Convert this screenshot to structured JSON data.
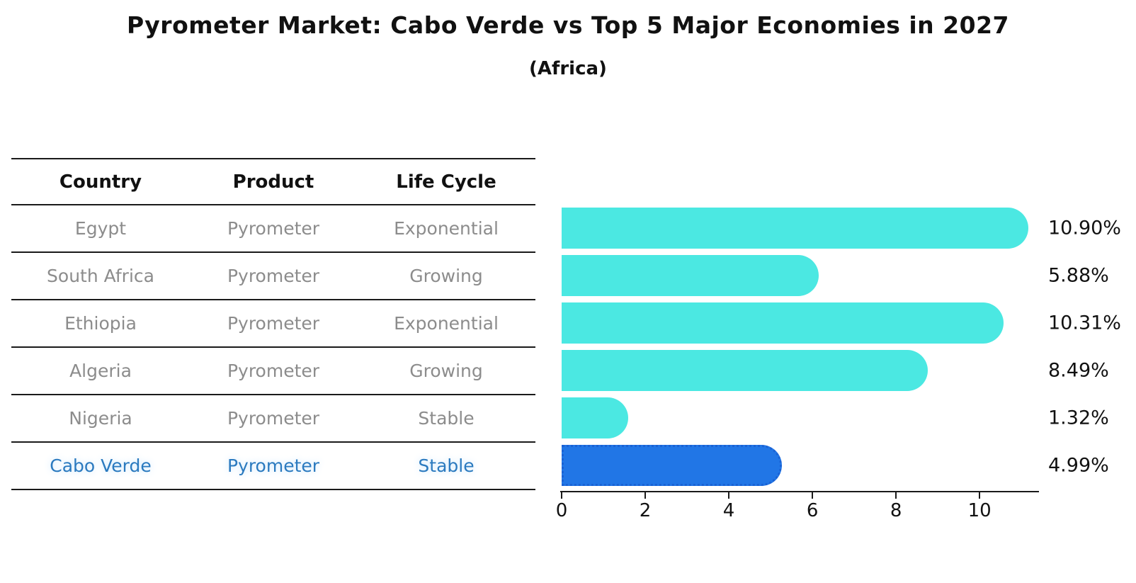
{
  "title": "Pyrometer Market: Cabo Verde vs Top 5 Major Economies in 2027",
  "subtitle": "(Africa)",
  "table": {
    "headers": [
      "Country",
      "Product",
      "Life Cycle"
    ],
    "rows": [
      {
        "country": "Egypt",
        "product": "Pyrometer",
        "life_cycle": "Exponential",
        "highlight": false
      },
      {
        "country": "South Africa",
        "product": "Pyrometer",
        "life_cycle": "Growing",
        "highlight": false
      },
      {
        "country": "Ethiopia",
        "product": "Pyrometer",
        "life_cycle": "Exponential",
        "highlight": false
      },
      {
        "country": "Algeria",
        "product": "Pyrometer",
        "life_cycle": "Growing",
        "highlight": false
      },
      {
        "country": "Nigeria",
        "product": "Pyrometer",
        "life_cycle": "Stable",
        "highlight": false
      },
      {
        "country": "Cabo Verde",
        "product": "Pyrometer",
        "life_cycle": "Stable",
        "highlight": true
      }
    ]
  },
  "chart_data": {
    "type": "bar",
    "orientation": "horizontal",
    "categories": [
      "Egypt",
      "South Africa",
      "Ethiopia",
      "Algeria",
      "Nigeria",
      "Cabo Verde"
    ],
    "values": [
      10.9,
      5.88,
      10.31,
      8.49,
      1.32,
      4.99
    ],
    "value_labels": [
      "10.90%",
      "5.88%",
      "10.31%",
      "8.49%",
      "1.32%",
      "4.99%"
    ],
    "x_ticks": [
      0,
      2,
      4,
      6,
      8,
      10
    ],
    "xlim": [
      0,
      11.42
    ],
    "grid": false,
    "legend": false,
    "bar_color": "#4be8e2",
    "highlight_index": 5,
    "highlight_color": "#2176e6",
    "highlight_border_color": "#1a62d4",
    "highlight_text_color": "#2b7abf"
  },
  "colors": {
    "background": "#ffffff",
    "title_text": "#111111",
    "table_line": "#1a1a1a",
    "row_text": "#8c8c8c"
  }
}
